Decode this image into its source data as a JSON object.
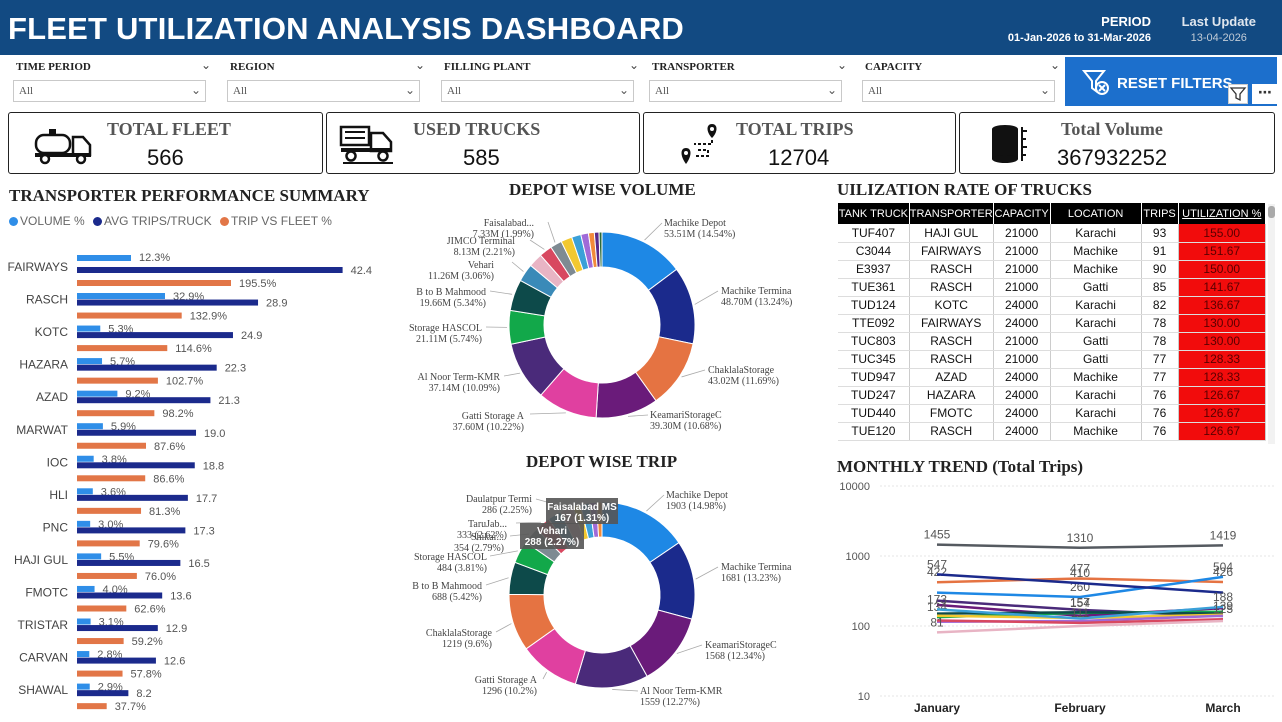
{
  "header": {
    "title": "FLEET UTILIZATION ANALYSIS DASHBOARD",
    "period_label": "PERIOD",
    "period_value": "01-Jan-2026 to 31-Mar-2026",
    "update_label": "Last Update",
    "update_value": "13-04-2026"
  },
  "filters": [
    {
      "label": "TIME PERIOD",
      "value": "All"
    },
    {
      "label": "REGION",
      "value": "All"
    },
    {
      "label": "FILLING PLANT",
      "value": "All"
    },
    {
      "label": "TRANSPORTER",
      "value": "All"
    },
    {
      "label": "CAPACITY",
      "value": "All"
    }
  ],
  "reset_label": "RESET FILTERS",
  "kpis": [
    {
      "label": "TOTAL FLEET",
      "value": "566",
      "icon": "tanker-truck-icon"
    },
    {
      "label": "USED TRUCKS",
      "value": "585",
      "icon": "dump-truck-icon"
    },
    {
      "label": "TOTAL TRIPS",
      "value": "12704",
      "icon": "route-pin-icon"
    },
    {
      "label": "Total Volume",
      "value": "367932252",
      "icon": "barrel-icon"
    }
  ],
  "transporter": {
    "title": "TRANSPORTER PERFORMANCE SUMMARY",
    "legend": [
      {
        "name": "VOLUME %",
        "color": "#2f8ee8"
      },
      {
        "name": "AVG TRIPS/TRUCK",
        "color": "#1b2a8c"
      },
      {
        "name": "TRIP VS FLEET %",
        "color": "#e27647"
      }
    ],
    "top_volume_label": "12.3%",
    "top_volume_value": 12.3
  },
  "depot_volume_title": "DEPOT WISE VOLUME",
  "depot_trip_title": "DEPOT WISE TRIP",
  "tooltips": {
    "faisalabad_ms_name": "Faisalabad MS",
    "faisalabad_ms_value": "167 (1.31%)",
    "vehari_name": "Vehari",
    "vehari_value": "288 (2.27%)"
  },
  "utilization": {
    "title": "UILIZATION RATE OF TRUCKS",
    "columns": [
      "TANK TRUCK",
      "TRANSPORTER",
      "CAPACITY",
      "LOCATION",
      "TRIPS",
      "UTILIZATION %"
    ],
    "rows": [
      [
        "TUF407",
        "HAJI GUL",
        "21000",
        "Karachi",
        "93",
        "155.00"
      ],
      [
        "C3044",
        "FAIRWAYS",
        "21000",
        "Machike",
        "91",
        "151.67"
      ],
      [
        "E3937",
        "RASCH",
        "21000",
        "Machike",
        "90",
        "150.00"
      ],
      [
        "TUE361",
        "RASCH",
        "21000",
        "Gatti",
        "85",
        "141.67"
      ],
      [
        "TUD124",
        "KOTC",
        "24000",
        "Karachi",
        "82",
        "136.67"
      ],
      [
        "TTE092",
        "FAIRWAYS",
        "24000",
        "Karachi",
        "78",
        "130.00"
      ],
      [
        "TUC803",
        "RASCH",
        "21000",
        "Gatti",
        "78",
        "130.00"
      ],
      [
        "TUC345",
        "RASCH",
        "21000",
        "Gatti",
        "77",
        "128.33"
      ],
      [
        "TUD947",
        "AZAD",
        "24000",
        "Machike",
        "77",
        "128.33"
      ],
      [
        "TUD247",
        "HAZARA",
        "24000",
        "Karachi",
        "76",
        "126.67"
      ],
      [
        "TUD440",
        "FMOTC",
        "24000",
        "Karachi",
        "76",
        "126.67"
      ],
      [
        "TUE120",
        "RASCH",
        "24000",
        "Machike",
        "76",
        "126.67"
      ]
    ]
  },
  "monthly_title": "MONTHLY TREND (Total Trips)",
  "chart_data": [
    {
      "type": "bar",
      "title": "TRANSPORTER PERFORMANCE SUMMARY",
      "categories": [
        "FAIRWAYS",
        "RASCH",
        "KOTC",
        "HAZARA",
        "AZAD",
        "MARWAT",
        "IOC",
        "HLI",
        "PNC",
        "HAJI GUL",
        "FMOTC",
        "TRISTAR",
        "CARVAN",
        "SHAWAL"
      ],
      "series": [
        {
          "name": "VOLUME %",
          "color": "#2f8ee8",
          "values": [
            32.9,
            5.3,
            5.7,
            9.2,
            5.9,
            3.8,
            3.6,
            3.0,
            5.5,
            4.0,
            3.1,
            2.8,
            2.9,
            0
          ],
          "labels": [
            "32.9%",
            "5.3%",
            "5.7%",
            "9.2%",
            "5.9%",
            "3.8%",
            "3.6%",
            "3.0%",
            "5.5%",
            "4.0%",
            "3.1%",
            "2.8%",
            "2.9%",
            ""
          ]
        },
        {
          "name": "AVG TRIPS/TRUCK",
          "color": "#1b2a8c",
          "values": [
            42.4,
            28.9,
            24.9,
            22.3,
            21.3,
            19.0,
            18.8,
            17.7,
            17.3,
            16.5,
            13.6,
            12.9,
            12.6,
            8.2
          ],
          "labels": [
            "42.4",
            "28.9",
            "24.9",
            "22.3",
            "21.3",
            "19.0",
            "18.8",
            "17.7",
            "17.3",
            "16.5",
            "13.6",
            "12.9",
            "12.6",
            "8.2"
          ]
        },
        {
          "name": "TRIP VS FLEET %",
          "color": "#e27647",
          "values": [
            195.5,
            132.9,
            114.6,
            102.7,
            98.2,
            87.6,
            86.6,
            81.3,
            79.6,
            76.0,
            62.6,
            59.2,
            57.8,
            37.7
          ],
          "labels": [
            "195.5%",
            "132.9%",
            "114.6%",
            "102.7%",
            "98.2%",
            "87.6%",
            "86.6%",
            "81.3%",
            "79.6%",
            "76.0%",
            "62.6%",
            "59.2%",
            "57.8%",
            "37.7%"
          ]
        }
      ]
    },
    {
      "type": "pie",
      "title": "DEPOT WISE VOLUME",
      "slices": [
        {
          "label": "Machike Depot",
          "value": 14.54,
          "text": "53.51M (14.54%)",
          "color": "#1e88e5"
        },
        {
          "label": "Machike Termina",
          "value": 13.24,
          "text": "48.70M (13.24%)",
          "color": "#1b2a8c"
        },
        {
          "label": "ChaklalaStorage",
          "value": 11.69,
          "text": "43.02M (11.69%)",
          "color": "#e57342"
        },
        {
          "label": "KeamariStorageC",
          "value": 10.68,
          "text": "39.30M (10.68%)",
          "color": "#6a1b7a"
        },
        {
          "label": "Gatti Storage A",
          "value": 10.22,
          "text": "37.60M (10.22%)",
          "color": "#e040a0"
        },
        {
          "label": "Al Noor Term-KMR",
          "value": 10.09,
          "text": "37.14M (10.09%)",
          "color": "#4a2a7a"
        },
        {
          "label": "Storage HASCOL",
          "value": 5.74,
          "text": "21.11M (5.74%)",
          "color": "#12a84a"
        },
        {
          "label": "B to B Mahmood",
          "value": 5.34,
          "text": "19.66M (5.34%)",
          "color": "#0d4a4a"
        },
        {
          "label": "Vehari",
          "value": 3.06,
          "text": "11.26M (3.06%)",
          "color": "#3a8ab8"
        },
        {
          "label": "",
          "value": 2.4,
          "text": "",
          "color": "#e8b4c4"
        },
        {
          "label": "JIMCO Terminal",
          "value": 2.21,
          "text": "8.13M (2.21%)",
          "color": "#d84860"
        },
        {
          "label": "Faisalabad...",
          "value": 1.99,
          "text": "7.33M (1.99%)",
          "color": "#7e8a92"
        },
        {
          "label": "",
          "value": 1.9,
          "text": "",
          "color": "#f2c830"
        },
        {
          "label": "",
          "value": 1.6,
          "text": "",
          "color": "#3aa0d8"
        },
        {
          "label": "",
          "value": 1.3,
          "text": "",
          "color": "#a06ad8"
        },
        {
          "label": "",
          "value": 1.0,
          "text": "",
          "color": "#f28a3a"
        },
        {
          "label": "",
          "value": 0.8,
          "text": "",
          "color": "#5a2a8a"
        },
        {
          "label": "",
          "value": 0.5,
          "text": "",
          "color": "#2a6a3a"
        }
      ]
    },
    {
      "type": "pie",
      "title": "DEPOT WISE TRIP",
      "slices": [
        {
          "label": "Machike Depot",
          "value": 14.98,
          "text": "1903 (14.98%)",
          "color": "#1e88e5"
        },
        {
          "label": "Machike Termina",
          "value": 13.23,
          "text": "1681 (13.23%)",
          "color": "#1b2a8c"
        },
        {
          "label": "KeamariStorageC",
          "value": 12.34,
          "text": "1568 (12.34%)",
          "color": "#6a1b7a"
        },
        {
          "label": "Al Noor Term-KMR",
          "value": 12.27,
          "text": "1559 (12.27%)",
          "color": "#4a2a7a"
        },
        {
          "label": "Gatti Storage A",
          "value": 10.2,
          "text": "1296 (10.2%)",
          "color": "#e040a0"
        },
        {
          "label": "ChaklalaStorage",
          "value": 9.6,
          "text": "1219 (9.6%)",
          "color": "#e57342"
        },
        {
          "label": "B to B Mahmood",
          "value": 5.42,
          "text": "688 (5.42%)",
          "color": "#0d4a4a"
        },
        {
          "label": "Storage HASCOL",
          "value": 3.81,
          "text": "484 (3.81%)",
          "color": "#12a84a"
        },
        {
          "label": "Shikar...",
          "value": 2.79,
          "text": "354 (2.79%)",
          "color": "#7e8a92"
        },
        {
          "label": "TaruJab...",
          "value": 2.62,
          "text": "333 (2.62%)",
          "color": "#d84860"
        },
        {
          "label": "Vehari",
          "value": 2.27,
          "text": "288 (2.27%)",
          "color": "#3a8ab8"
        },
        {
          "label": "Daulatpur Termi",
          "value": 2.25,
          "text": "286 (2.25%)",
          "color": "#e8b4c4"
        },
        {
          "label": "Faisalabad MS",
          "value": 1.31,
          "text": "167 (1.31%)",
          "color": "#f2c830"
        },
        {
          "label": "",
          "value": 1.5,
          "text": "",
          "color": "#3aa0d8"
        },
        {
          "label": "",
          "value": 1.2,
          "text": "",
          "color": "#a06ad8"
        },
        {
          "label": "",
          "value": 0.9,
          "text": "",
          "color": "#f28a3a"
        }
      ]
    },
    {
      "type": "line",
      "title": "MONTHLY TREND (Total Trips)",
      "x": [
        "January",
        "February",
        "March"
      ],
      "y_scale": "log",
      "ylim": [
        10,
        10000
      ],
      "yticks": [
        "10",
        "100",
        "1000",
        "10000"
      ],
      "series": [
        {
          "color": "#555a60",
          "values": [
            1455,
            1310,
            1419
          ],
          "labels": [
            "1455",
            "1310",
            "1419"
          ]
        },
        {
          "color": "#e57342",
          "values": [
            422,
            477,
            426
          ],
          "labels": [
            "422",
            "477",
            "426"
          ]
        },
        {
          "color": "#1e88e5",
          "values": [
            300,
            260,
            504
          ],
          "labels": [
            "",
            "260",
            "504"
          ]
        },
        {
          "color": "#1b2a8c",
          "values": [
            547,
            410,
            300
          ],
          "labels": [
            "547",
            "410",
            ""
          ]
        },
        {
          "color": "#4a2a7a",
          "values": [
            230,
            170,
            139
          ],
          "labels": [
            "",
            "",
            "139"
          ]
        },
        {
          "color": "#6a1b7a",
          "values": [
            200,
            140,
            180
          ],
          "labels": [
            "",
            "",
            ""
          ]
        },
        {
          "color": "#12a84a",
          "values": [
            134,
            154,
            160
          ],
          "labels": [
            "134",
            "154",
            ""
          ]
        },
        {
          "color": "#0d4a4a",
          "values": [
            150,
            157,
            150
          ],
          "labels": [
            "",
            "157",
            ""
          ]
        },
        {
          "color": "#f2c830",
          "values": [
            140,
            130,
            145
          ],
          "labels": [
            "",
            "",
            ""
          ]
        },
        {
          "color": "#3aa0d8",
          "values": [
            173,
            128,
            188
          ],
          "labels": [
            "173",
            "",
            "188"
          ]
        },
        {
          "color": "#a06ad8",
          "values": [
            115,
            118,
            140
          ],
          "labels": [
            "",
            "",
            ""
          ]
        },
        {
          "color": "#d84860",
          "values": [
            120,
            111,
            125
          ],
          "labels": [
            "",
            "111",
            "125"
          ]
        },
        {
          "color": "#e8b4c4",
          "values": [
            81,
            100,
            118
          ],
          "labels": [
            "81",
            "",
            ""
          ]
        }
      ]
    }
  ]
}
